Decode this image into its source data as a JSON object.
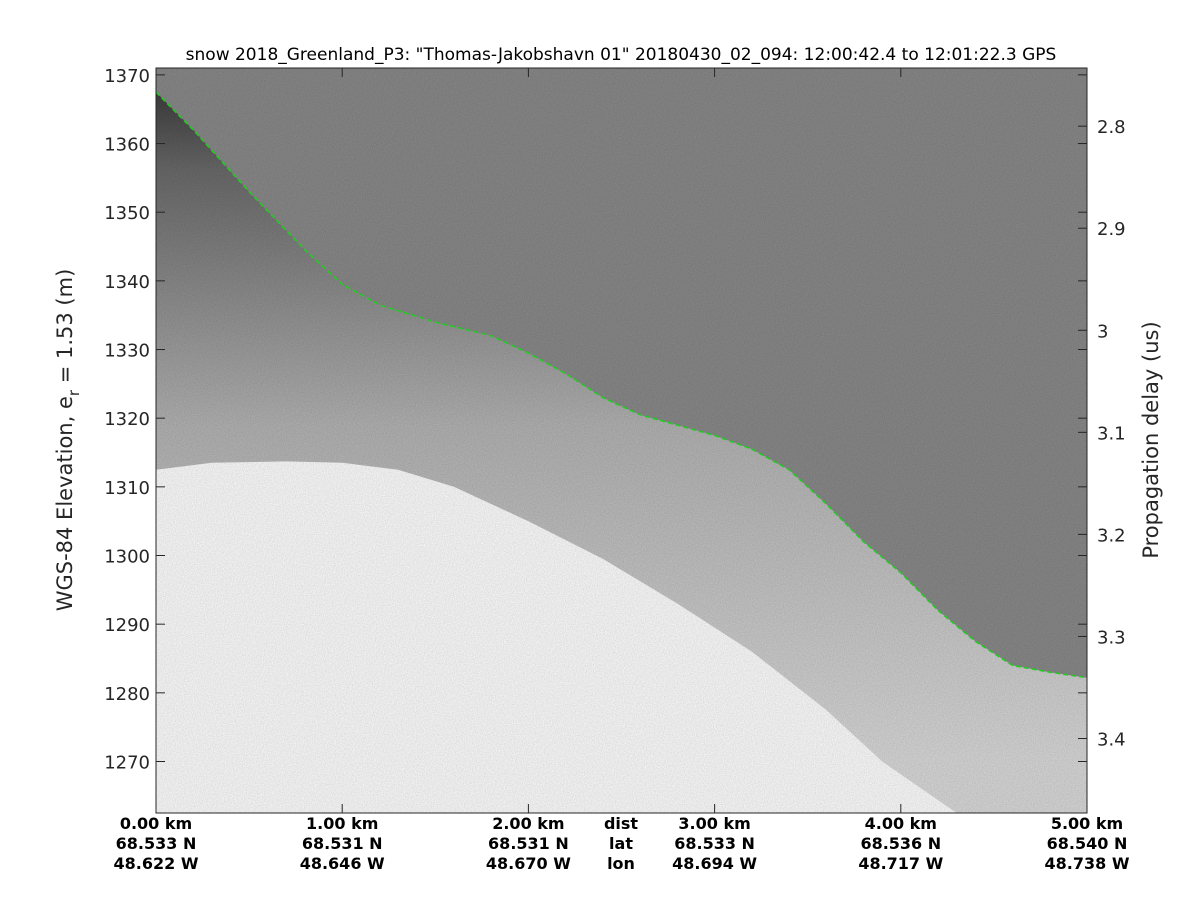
{
  "chart_data": {
    "type": "heatmap",
    "title": "snow 2018_Greenland_P3: \"Thomas-Jakobshavn 01\"  20180430_02_094: 12:00:42.4 to 12:01:22.3 GPS",
    "ylabel_left": "WGS-84 Elevation, e",
    "ylabel_left_sub": "r",
    "ylabel_left_suffix": " = 1.53 (m)",
    "ylabel_right": "Propagation delay (us)",
    "x_range_km": [
      0,
      5
    ],
    "y_left_range": [
      1262.5,
      1371
    ],
    "y_right_range": [
      2.743,
      3.473
    ],
    "y_left_ticks": [
      "1270",
      "1280",
      "1290",
      "1300",
      "1310",
      "1320",
      "1330",
      "1340",
      "1350",
      "1360",
      "1370"
    ],
    "y_right_ticks": [
      "2.8",
      "2.9",
      "3",
      "3.1",
      "3.2",
      "3.3",
      "3.4"
    ],
    "x_ticks": [
      {
        "km": 0,
        "dist": "0.00 km",
        "lat": "68.533 N",
        "lon": "48.622 W"
      },
      {
        "km": 1,
        "dist": "1.00 km",
        "lat": "68.531 N",
        "lon": "48.646 W"
      },
      {
        "km": 2,
        "dist": "2.00 km",
        "lat": "68.531 N",
        "lon": "48.670 W"
      },
      {
        "km": 3,
        "dist": "3.00 km",
        "lat": "68.533 N",
        "lon": "48.694 W"
      },
      {
        "km": 4,
        "dist": "4.00 km",
        "lat": "68.536 N",
        "lon": "48.717 W"
      },
      {
        "km": 5,
        "dist": "5.00 km",
        "lat": "68.540 N",
        "lon": "48.738 W"
      }
    ],
    "row_labels": {
      "dist": "dist",
      "lat": "lat",
      "lon": "lon"
    },
    "surface": {
      "color": "#22cc22",
      "style": "dashed",
      "points": [
        [
          0,
          1367.5
        ],
        [
          0.2,
          1362
        ],
        [
          0.5,
          1353
        ],
        [
          0.8,
          1344.5
        ],
        [
          1.0,
          1339.5
        ],
        [
          1.2,
          1336.5
        ],
        [
          1.5,
          1334
        ],
        [
          1.8,
          1332
        ],
        [
          2.0,
          1329.5
        ],
        [
          2.2,
          1326.5
        ],
        [
          2.4,
          1323
        ],
        [
          2.6,
          1320.5
        ],
        [
          2.8,
          1319
        ],
        [
          3.0,
          1317.5
        ],
        [
          3.2,
          1315.5
        ],
        [
          3.4,
          1312.5
        ],
        [
          3.6,
          1307.5
        ],
        [
          3.8,
          1302
        ],
        [
          4.0,
          1297.5
        ],
        [
          4.2,
          1292
        ],
        [
          4.4,
          1287.5
        ],
        [
          4.6,
          1284
        ],
        [
          4.8,
          1283
        ],
        [
          5.0,
          1282.2
        ]
      ]
    },
    "no_data_boundary": {
      "points": [
        [
          0,
          1312.5
        ],
        [
          0.3,
          1313.5
        ],
        [
          0.7,
          1313.7
        ],
        [
          1.0,
          1313.5
        ],
        [
          1.3,
          1312.5
        ],
        [
          1.6,
          1310
        ],
        [
          2.0,
          1305
        ],
        [
          2.4,
          1299.5
        ],
        [
          2.8,
          1293
        ],
        [
          3.2,
          1286
        ],
        [
          3.6,
          1277.5
        ],
        [
          3.9,
          1270
        ],
        [
          4.3,
          1262.5
        ]
      ]
    },
    "colormap": "gray",
    "colors": {
      "air": "#8a8a8a",
      "near_surface": "#444444",
      "deep": "#d6d6d6",
      "no_data": "#ffffff"
    }
  }
}
